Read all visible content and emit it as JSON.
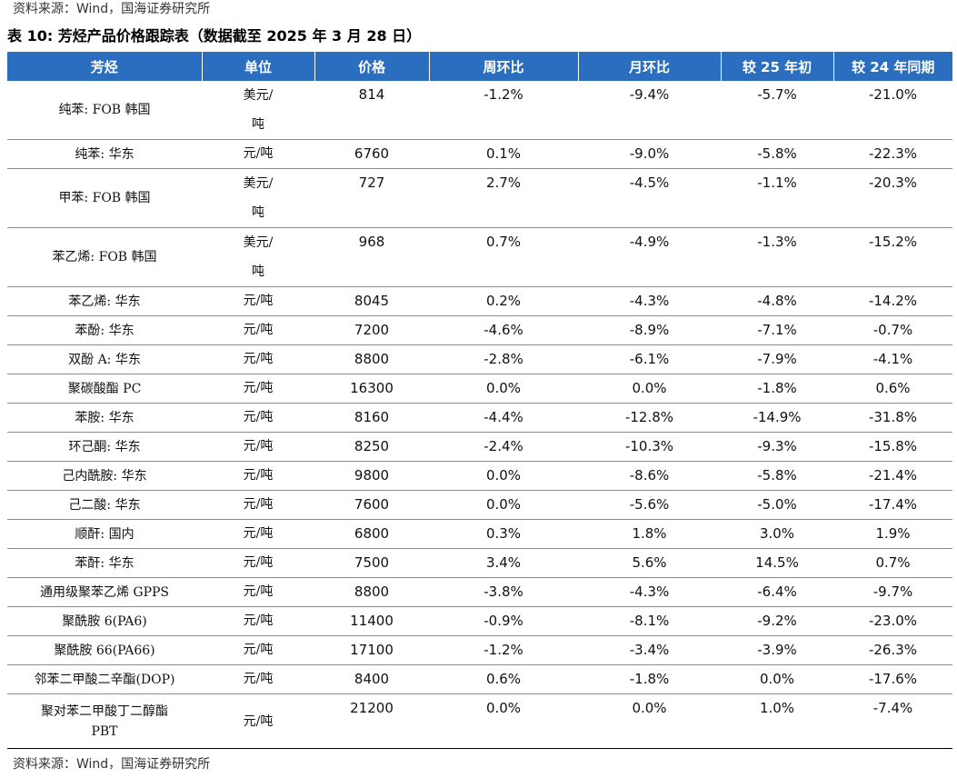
{
  "source_top": "资料来源：Wind，国海证券研究所",
  "title": "表 10:  芳烃产品价格跟踪表（数据截至 2025 年 3 月 28 日）",
  "headers": [
    "芳烃",
    "单位",
    "价格",
    "周环比",
    "月环比",
    "较 25 年初",
    "较 24 年同期"
  ],
  "rows": [
    {
      "name": "纯苯: FOB 韩国",
      "unit": "美元/\n吨",
      "price": "814",
      "wow": "-1.2%",
      "mom": "-9.4%",
      "ytd": "-5.7%",
      "yoy": "-21.0%"
    },
    {
      "name": "纯苯: 华东",
      "unit": "元/吨",
      "price": "6760",
      "wow": "0.1%",
      "mom": "-9.0%",
      "ytd": "-5.8%",
      "yoy": "-22.3%"
    },
    {
      "name": "甲苯: FOB 韩国",
      "unit": "美元/\n吨",
      "price": "727",
      "wow": "2.7%",
      "mom": "-4.5%",
      "ytd": "-1.1%",
      "yoy": "-20.3%"
    },
    {
      "name": "苯乙烯: FOB 韩国",
      "unit": "美元/\n吨",
      "price": "968",
      "wow": "0.7%",
      "mom": "-4.9%",
      "ytd": "-1.3%",
      "yoy": "-15.2%"
    },
    {
      "name": "苯乙烯: 华东",
      "unit": "元/吨",
      "price": "8045",
      "wow": "0.2%",
      "mom": "-4.3%",
      "ytd": "-4.8%",
      "yoy": "-14.2%"
    },
    {
      "name": "苯酚: 华东",
      "unit": "元/吨",
      "price": "7200",
      "wow": "-4.6%",
      "mom": "-8.9%",
      "ytd": "-7.1%",
      "yoy": "-0.7%"
    },
    {
      "name": "双酚 A: 华东",
      "unit": "元/吨",
      "price": "8800",
      "wow": "-2.8%",
      "mom": "-6.1%",
      "ytd": "-7.9%",
      "yoy": "-4.1%"
    },
    {
      "name": "聚碳酸酯 PC",
      "unit": "元/吨",
      "price": "16300",
      "wow": "0.0%",
      "mom": "0.0%",
      "ytd": "-1.8%",
      "yoy": "0.6%"
    },
    {
      "name": "苯胺: 华东",
      "unit": "元/吨",
      "price": "8160",
      "wow": "-4.4%",
      "mom": "-12.8%",
      "ytd": "-14.9%",
      "yoy": "-31.8%"
    },
    {
      "name": "环己酮: 华东",
      "unit": "元/吨",
      "price": "8250",
      "wow": "-2.4%",
      "mom": "-10.3%",
      "ytd": "-9.3%",
      "yoy": "-15.8%"
    },
    {
      "name": "己内酰胺: 华东",
      "unit": "元/吨",
      "price": "9800",
      "wow": "0.0%",
      "mom": "-8.6%",
      "ytd": "-5.8%",
      "yoy": "-21.4%"
    },
    {
      "name": "己二酸:  华东",
      "unit": "元/吨",
      "price": "7600",
      "wow": "0.0%",
      "mom": "-5.6%",
      "ytd": "-5.0%",
      "yoy": "-17.4%"
    },
    {
      "name": "顺酐: 国内",
      "unit": "元/吨",
      "price": "6800",
      "wow": "0.3%",
      "mom": "1.8%",
      "ytd": "3.0%",
      "yoy": "1.9%"
    },
    {
      "name": "苯酐: 华东",
      "unit": "元/吨",
      "price": "7500",
      "wow": "3.4%",
      "mom": "5.6%",
      "ytd": "14.5%",
      "yoy": "0.7%"
    },
    {
      "name": "通用级聚苯乙烯 GPPS",
      "unit": "元/吨",
      "price": "8800",
      "wow": "-3.8%",
      "mom": "-4.3%",
      "ytd": "-6.4%",
      "yoy": "-9.7%"
    },
    {
      "name": "聚酰胺 6(PA6)",
      "unit": "元/吨",
      "price": "11400",
      "wow": "-0.9%",
      "mom": "-8.1%",
      "ytd": "-9.2%",
      "yoy": "-23.0%"
    },
    {
      "name": "聚酰胺 66(PA66)",
      "unit": "元/吨",
      "price": "17100",
      "wow": "-1.2%",
      "mom": "-3.4%",
      "ytd": "-3.9%",
      "yoy": "-26.3%"
    },
    {
      "name": "邻苯二甲酸二辛酯(DOP)",
      "unit": "元/吨",
      "price": "8400",
      "wow": "0.6%",
      "mom": "-1.8%",
      "ytd": "0.0%",
      "yoy": "-17.6%"
    },
    {
      "name": "聚对苯二甲酸丁二醇酯\nPBT",
      "unit": "元/吨",
      "price": "21200",
      "wow": "0.0%",
      "mom": "0.0%",
      "ytd": "1.0%",
      "yoy": "-7.4%"
    }
  ],
  "source_bottom": "资料来源：Wind，国海证券研究所"
}
